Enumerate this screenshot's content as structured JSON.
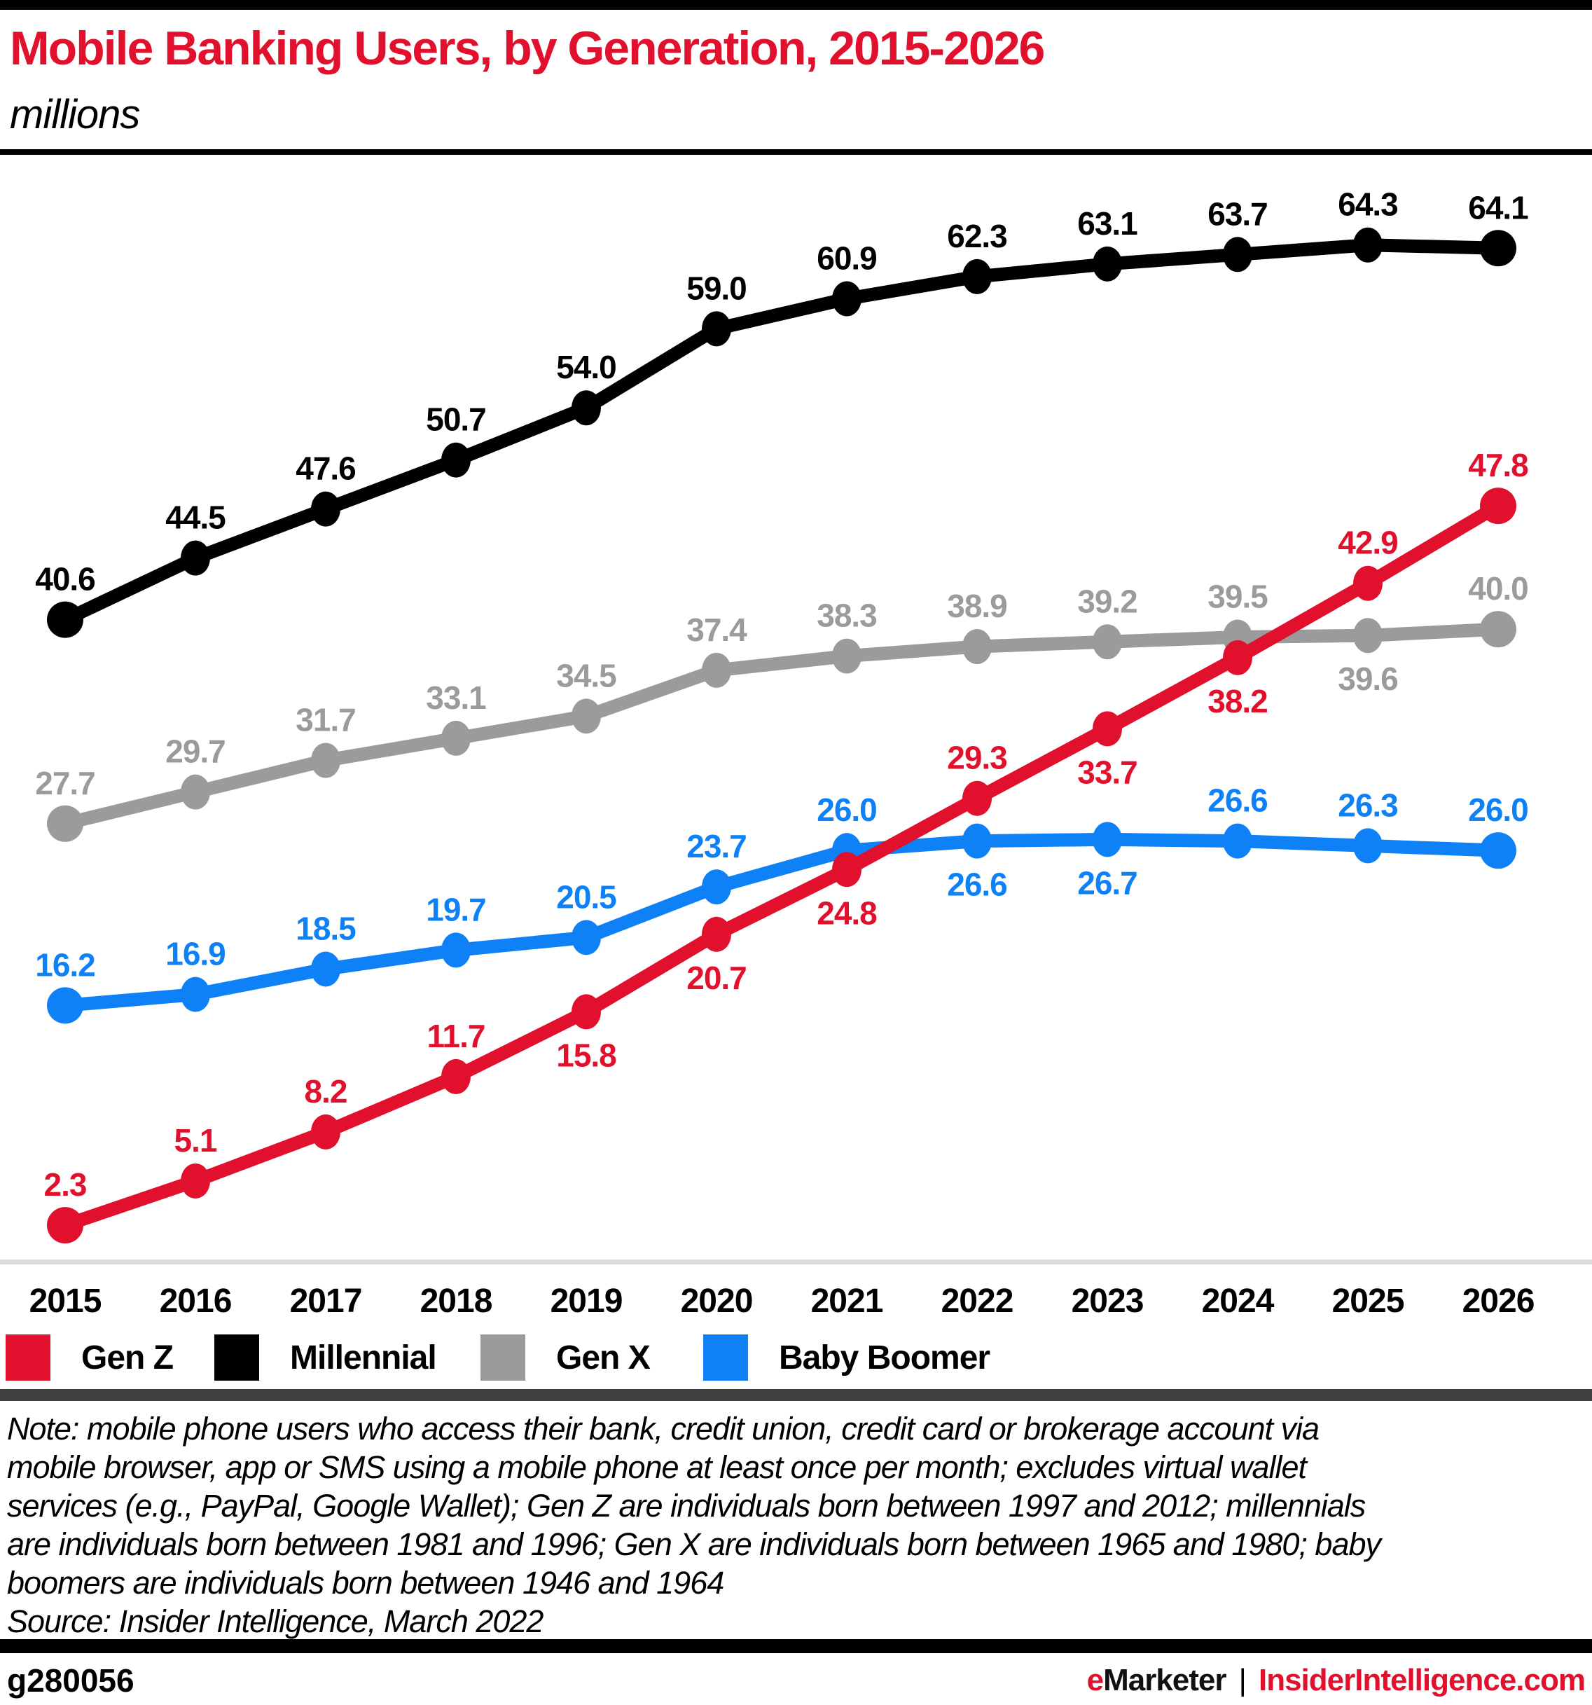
{
  "header": {
    "title": "Mobile Banking Users, by Generation, 2015-2026",
    "subtitle": "millions"
  },
  "chart_data": {
    "type": "line",
    "title": "Mobile Banking Users, by Generation, 2015-2026",
    "unit_label": "millions",
    "x": [
      "2015",
      "2016",
      "2017",
      "2018",
      "2019",
      "2020",
      "2021",
      "2022",
      "2023",
      "2024",
      "2025",
      "2026"
    ],
    "ylim": [
      0,
      70
    ],
    "grid": false,
    "legend_position": "bottom",
    "series": [
      {
        "name": "Gen Z",
        "color": "#e1112d",
        "values": [
          2.3,
          5.1,
          8.2,
          11.7,
          15.8,
          20.7,
          24.8,
          29.3,
          33.7,
          38.2,
          42.9,
          47.8
        ],
        "label_side": [
          "above",
          "above",
          "above",
          "above",
          "below",
          "below",
          "below",
          "above",
          "below",
          "below",
          "above",
          "above"
        ]
      },
      {
        "name": "Millennial",
        "color": "#000000",
        "values": [
          40.6,
          44.5,
          47.6,
          50.7,
          54.0,
          59.0,
          60.9,
          62.3,
          63.1,
          63.7,
          64.3,
          64.1
        ],
        "label_side": [
          "above",
          "above",
          "above",
          "above",
          "above",
          "above",
          "above",
          "above",
          "above",
          "above",
          "above",
          "above"
        ]
      },
      {
        "name": "Gen X",
        "color": "#9b9b9b",
        "values": [
          27.7,
          29.7,
          31.7,
          33.1,
          34.5,
          37.4,
          38.3,
          38.9,
          39.2,
          39.5,
          39.6,
          40.0
        ],
        "label_side": [
          "above",
          "above",
          "above",
          "above",
          "above",
          "above",
          "above",
          "above",
          "above",
          "above",
          "below",
          "above"
        ]
      },
      {
        "name": "Baby Boomer",
        "color": "#0f81f7",
        "values": [
          16.2,
          16.9,
          18.5,
          19.7,
          20.5,
          23.7,
          26.0,
          26.6,
          26.7,
          26.6,
          26.3,
          26.0
        ],
        "label_side": [
          "above",
          "above",
          "above",
          "above",
          "above",
          "above",
          "above",
          "below",
          "below",
          "above",
          "above",
          "above"
        ]
      }
    ]
  },
  "note_lines": [
    "Note: mobile phone users who access their bank, credit union, credit card or brokerage account via",
    "mobile browser, app or SMS using a mobile phone at least once per month; excludes virtual wallet",
    "services (e.g., PayPal, Google Wallet); Gen Z are individuals born between 1997 and 2012; millennials",
    "are individuals born between 1981 and 1996; Gen X are individuals born between 1965 and 1980; baby",
    "boomers are individuals born between 1946 and 1964"
  ],
  "source": "Source: Insider Intelligence, March 2022",
  "footer": {
    "chart_id": "g280056",
    "brand_accent": "e",
    "brand_rest": "Marketer",
    "separator": "|",
    "site": "InsiderIntelligence.com"
  }
}
